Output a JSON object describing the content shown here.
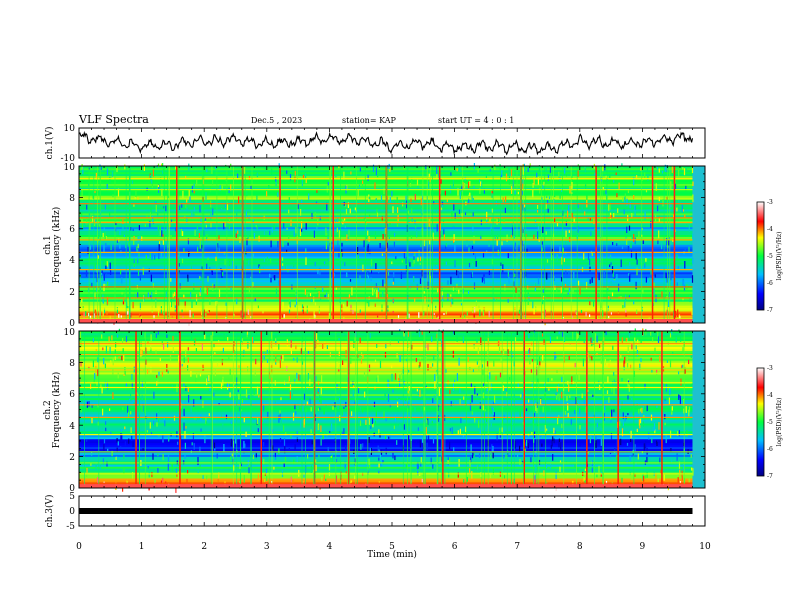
{
  "header": {
    "title": "VLF Spectra",
    "date": "Dec.5  , 2023",
    "station": "station= KAP",
    "start": "start  UT =   4 : 0   : 1"
  },
  "chart_data": [
    {
      "type": "line",
      "name": "ch1-waveform",
      "ylabel": "ch.1(V)",
      "ylim": [
        -10,
        10
      ],
      "ytick_labels": [
        "10",
        "-10"
      ],
      "xlim": [
        0,
        10
      ],
      "data_end_min": 9.8,
      "x": [
        0,
        0.5,
        1,
        1.5,
        2,
        2.5,
        3,
        3.5,
        4,
        4.5,
        5,
        5.5,
        6,
        6.5,
        7,
        7.5,
        8,
        8.5,
        9,
        9.5,
        9.8
      ],
      "y": [
        4,
        1,
        -2,
        -1,
        1,
        2,
        0,
        1,
        3,
        2,
        -2,
        0,
        -3,
        -2,
        -3,
        -4,
        1,
        0,
        0,
        3,
        4
      ],
      "color": "#000000"
    },
    {
      "type": "heatmap",
      "name": "ch1-spectrogram",
      "ylabel_line1": "ch.1",
      "ylabel_line2": "Frequency (kHz)",
      "ylim": [
        0,
        10
      ],
      "ytick_labels": [
        "0",
        "2",
        "4",
        "6",
        "8",
        "10"
      ],
      "xlim": [
        0,
        10
      ],
      "data_end_min": 9.8,
      "colorbar": {
        "label": "log(PSD)(V²/Hz)",
        "ticks": [
          "-3",
          "-4",
          "-5",
          "-6",
          "-7"
        ],
        "range": [
          -7,
          -3
        ]
      },
      "band_profile_khz": [
        [
          0,
          -3.3
        ],
        [
          0.5,
          -4.0
        ],
        [
          1,
          -4.4
        ],
        [
          1.5,
          -5.1
        ],
        [
          2,
          -4.8
        ],
        [
          2.5,
          -5.3
        ],
        [
          3,
          -6.1
        ],
        [
          3.5,
          -5.6
        ],
        [
          4,
          -5.1
        ],
        [
          4.5,
          -6.0
        ],
        [
          5,
          -5.6
        ],
        [
          5.5,
          -4.6
        ],
        [
          6,
          -5.9
        ],
        [
          6.5,
          -4.8
        ],
        [
          7,
          -5.1
        ],
        [
          7.5,
          -5.4
        ],
        [
          8,
          -4.5
        ],
        [
          8.5,
          -5.2
        ],
        [
          9,
          -4.8
        ],
        [
          9.5,
          -5.0
        ],
        [
          10,
          -5.2
        ]
      ],
      "spike_times_min": [
        1.55,
        2.6,
        3.2,
        4.05,
        4.9,
        5.75,
        7.05,
        8.25,
        9.15,
        9.5
      ]
    },
    {
      "type": "heatmap",
      "name": "ch2-spectrogram",
      "ylabel_line1": "ch.2",
      "ylabel_line2": "Frequency (kHz)",
      "ylim": [
        0,
        10
      ],
      "ytick_labels": [
        "0",
        "2",
        "4",
        "6",
        "8",
        "10"
      ],
      "xlim": [
        0,
        10
      ],
      "data_end_min": 9.8,
      "colorbar": {
        "label": "log(PSD)(V²/Hz)",
        "ticks": [
          "-3",
          "-4",
          "-5",
          "-6",
          "-7"
        ],
        "range": [
          -7,
          -3
        ]
      },
      "band_profile_khz": [
        [
          0,
          -3.3
        ],
        [
          0.5,
          -4.3
        ],
        [
          1,
          -4.9
        ],
        [
          1.5,
          -5.4
        ],
        [
          2,
          -5.6
        ],
        [
          2.5,
          -6.3
        ],
        [
          3,
          -6.4
        ],
        [
          3.5,
          -5.1
        ],
        [
          4,
          -5.2
        ],
        [
          4.5,
          -5.4
        ],
        [
          5,
          -5.2
        ],
        [
          5.5,
          -5.4
        ],
        [
          6,
          -5.0
        ],
        [
          6.5,
          -5.2
        ],
        [
          7,
          -4.8
        ],
        [
          7.5,
          -4.4
        ],
        [
          8,
          -4.6
        ],
        [
          8.5,
          -4.8
        ],
        [
          9,
          -4.3
        ],
        [
          9.5,
          -4.9
        ],
        [
          10,
          -5.0
        ]
      ],
      "spike_times_min": [
        0.9,
        1.6,
        2.9,
        3.75,
        4.3,
        5.8,
        7.1,
        8.1,
        8.6,
        9.3
      ]
    },
    {
      "type": "line",
      "name": "ch3-waveform",
      "ylabel": "ch.3(V)",
      "ylim": [
        -5,
        5
      ],
      "ytick_labels": [
        "5",
        "0",
        "-5"
      ],
      "xlim": [
        0,
        10
      ],
      "data_end_min": 9.8,
      "x": [
        0,
        9.8
      ],
      "y": [
        0,
        0
      ],
      "color": "#000000"
    }
  ],
  "x_axis": {
    "label": "Time  (min)",
    "tick_labels": [
      "0",
      "1",
      "2",
      "3",
      "4",
      "5",
      "6",
      "7",
      "8",
      "9",
      "10"
    ]
  }
}
